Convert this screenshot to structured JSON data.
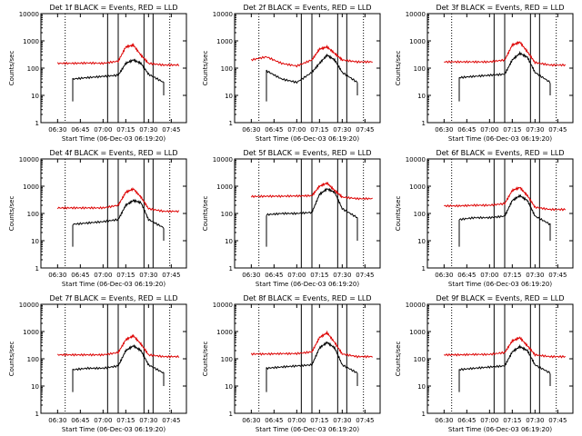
{
  "colors": {
    "events": "#000000",
    "lld": "#dd0000",
    "axis": "#000000",
    "background": "#ffffff"
  },
  "x_ticks": [
    "06:30",
    "06:45",
    "07:00",
    "07:15",
    "07:30",
    "07:45"
  ],
  "y_ticks": [
    "1",
    "10",
    "100",
    "1000",
    "10000"
  ],
  "ylabel": "Counts/sec",
  "xlabel": "Start Time (06-Dec-03 06:19:20)",
  "chart_data": [
    {
      "type": "line",
      "title": "Det 1f BLACK = Events, RED = LLD",
      "xlabel": "Start Time (06-Dec-03 06:19:20)",
      "ylabel": "Counts/sec",
      "scale": "log",
      "ylim": [
        1,
        10000
      ],
      "x": [
        "06:30",
        "06:40",
        "06:50",
        "07:00",
        "07:10",
        "07:15",
        "07:20",
        "07:25",
        "07:30",
        "07:40",
        "07:50"
      ],
      "series": [
        {
          "name": "Events",
          "color": "#000000",
          "values": [
            null,
            40,
            45,
            50,
            55,
            150,
            200,
            150,
            60,
            30,
            null
          ]
        },
        {
          "name": "LLD",
          "color": "#dd0000",
          "values": [
            150,
            150,
            155,
            150,
            180,
            600,
            700,
            300,
            150,
            130,
            130
          ]
        }
      ]
    },
    {
      "type": "line",
      "title": "Det 2f BLACK = Events, RED = LLD",
      "xlabel": "Start Time (06-Dec-03 06:19:20)",
      "ylabel": "Counts/sec",
      "scale": "log",
      "ylim": [
        1,
        10000
      ],
      "x": [
        "06:30",
        "06:40",
        "06:50",
        "07:00",
        "07:10",
        "07:15",
        "07:20",
        "07:25",
        "07:30",
        "07:40",
        "07:50"
      ],
      "series": [
        {
          "name": "Events",
          "color": "#000000",
          "values": [
            null,
            80,
            40,
            30,
            70,
            150,
            300,
            200,
            70,
            30,
            null
          ]
        },
        {
          "name": "LLD",
          "color": "#dd0000",
          "values": [
            200,
            260,
            150,
            120,
            200,
            500,
            600,
            350,
            200,
            170,
            170
          ]
        }
      ]
    },
    {
      "type": "line",
      "title": "Det 3f BLACK = Events, RED = LLD",
      "xlabel": "Start Time (06-Dec-03 06:19:20)",
      "ylabel": "Counts/sec",
      "scale": "log",
      "ylim": [
        1,
        10000
      ],
      "x": [
        "06:30",
        "06:40",
        "06:50",
        "07:00",
        "07:10",
        "07:15",
        "07:20",
        "07:25",
        "07:30",
        "07:40",
        "07:50"
      ],
      "series": [
        {
          "name": "Events",
          "color": "#000000",
          "values": [
            null,
            45,
            50,
            55,
            60,
            200,
            350,
            250,
            70,
            30,
            null
          ]
        },
        {
          "name": "LLD",
          "color": "#dd0000",
          "values": [
            170,
            170,
            170,
            170,
            200,
            700,
            900,
            400,
            160,
            130,
            130
          ]
        }
      ]
    },
    {
      "type": "line",
      "title": "Det 4f BLACK = Events, RED = LLD",
      "xlabel": "Start Time (06-Dec-03 06:19:20)",
      "ylabel": "Counts/sec",
      "scale": "log",
      "ylim": [
        1,
        10000
      ],
      "x": [
        "06:30",
        "06:40",
        "06:50",
        "07:00",
        "07:10",
        "07:15",
        "07:20",
        "07:25",
        "07:30",
        "07:40",
        "07:50"
      ],
      "series": [
        {
          "name": "Events",
          "color": "#000000",
          "values": [
            null,
            40,
            45,
            50,
            60,
            200,
            300,
            250,
            60,
            30,
            null
          ]
        },
        {
          "name": "LLD",
          "color": "#dd0000",
          "values": [
            160,
            160,
            160,
            160,
            200,
            600,
            800,
            400,
            150,
            120,
            120
          ]
        }
      ]
    },
    {
      "type": "line",
      "title": "Det 5f BLACK = Events, RED = LLD",
      "xlabel": "Start Time (06-Dec-03 06:19:20)",
      "ylabel": "Counts/sec",
      "scale": "log",
      "ylim": [
        1,
        10000
      ],
      "x": [
        "06:30",
        "06:40",
        "06:50",
        "07:00",
        "07:10",
        "07:15",
        "07:20",
        "07:25",
        "07:30",
        "07:40",
        "07:50"
      ],
      "series": [
        {
          "name": "Events",
          "color": "#000000",
          "values": [
            null,
            90,
            100,
            100,
            110,
            500,
            800,
            600,
            150,
            70,
            null
          ]
        },
        {
          "name": "LLD",
          "color": "#dd0000",
          "values": [
            420,
            430,
            430,
            440,
            450,
            1000,
            1300,
            700,
            400,
            350,
            350
          ]
        }
      ]
    },
    {
      "type": "line",
      "title": "Det 6f BLACK = Events, RED = LLD",
      "xlabel": "Start Time (06-Dec-03 06:19:20)",
      "ylabel": "Counts/sec",
      "scale": "log",
      "ylim": [
        1,
        10000
      ],
      "x": [
        "06:30",
        "06:40",
        "06:50",
        "07:00",
        "07:10",
        "07:15",
        "07:20",
        "07:25",
        "07:30",
        "07:40",
        "07:50"
      ],
      "series": [
        {
          "name": "Events",
          "color": "#000000",
          "values": [
            null,
            60,
            70,
            70,
            80,
            300,
            450,
            300,
            80,
            40,
            null
          ]
        },
        {
          "name": "LLD",
          "color": "#dd0000",
          "values": [
            190,
            190,
            200,
            200,
            230,
            700,
            900,
            450,
            170,
            140,
            140
          ]
        }
      ]
    },
    {
      "type": "line",
      "title": "Det 7f BLACK = Events, RED = LLD",
      "xlabel": "Start Time (06-Dec-03 06:19:20)",
      "ylabel": "Counts/sec",
      "scale": "log",
      "ylim": [
        1,
        10000
      ],
      "x": [
        "06:30",
        "06:40",
        "06:50",
        "07:00",
        "07:10",
        "07:15",
        "07:20",
        "07:25",
        "07:30",
        "07:40",
        "07:50"
      ],
      "series": [
        {
          "name": "Events",
          "color": "#000000",
          "values": [
            null,
            40,
            45,
            45,
            55,
            200,
            300,
            200,
            60,
            30,
            null
          ]
        },
        {
          "name": "LLD",
          "color": "#dd0000",
          "values": [
            140,
            140,
            140,
            140,
            170,
            500,
            700,
            350,
            140,
            120,
            120
          ]
        }
      ]
    },
    {
      "type": "line",
      "title": "Det 8f BLACK = Events, RED = LLD",
      "xlabel": "Start Time (06-Dec-03 06:19:20)",
      "ylabel": "Counts/sec",
      "scale": "log",
      "ylim": [
        1,
        10000
      ],
      "x": [
        "06:30",
        "06:40",
        "06:50",
        "07:00",
        "07:10",
        "07:15",
        "07:20",
        "07:25",
        "07:30",
        "07:40",
        "07:50"
      ],
      "series": [
        {
          "name": "Events",
          "color": "#000000",
          "values": [
            null,
            45,
            50,
            55,
            60,
            250,
            400,
            250,
            60,
            30,
            null
          ]
        },
        {
          "name": "LLD",
          "color": "#dd0000",
          "values": [
            150,
            150,
            155,
            155,
            180,
            600,
            900,
            400,
            150,
            120,
            120
          ]
        }
      ]
    },
    {
      "type": "line",
      "title": "Det 9f BLACK = Events, RED = LLD",
      "xlabel": "Start Time (06-Dec-03 06:19:20)",
      "ylabel": "Counts/sec",
      "scale": "log",
      "ylim": [
        1,
        10000
      ],
      "x": [
        "06:30",
        "06:40",
        "06:50",
        "07:00",
        "07:10",
        "07:15",
        "07:20",
        "07:25",
        "07:30",
        "07:40",
        "07:50"
      ],
      "series": [
        {
          "name": "Events",
          "color": "#000000",
          "values": [
            null,
            40,
            45,
            50,
            55,
            180,
            280,
            200,
            60,
            30,
            null
          ]
        },
        {
          "name": "LLD",
          "color": "#dd0000",
          "values": [
            140,
            140,
            145,
            145,
            170,
            450,
            600,
            300,
            140,
            120,
            120
          ]
        }
      ]
    }
  ]
}
